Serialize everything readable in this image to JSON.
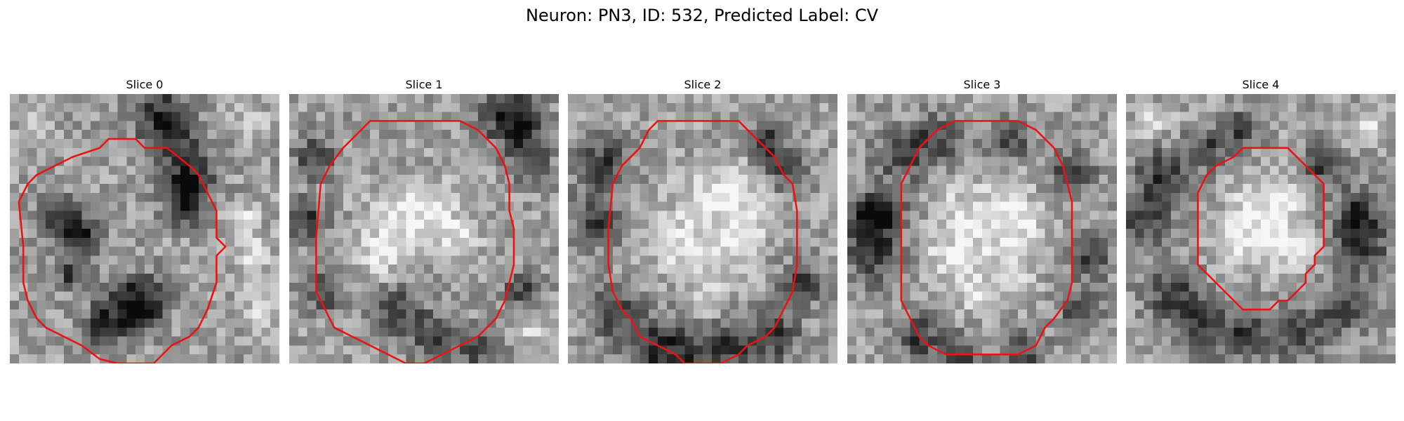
{
  "figure": {
    "title": "Neuron: PN3, ID: 532, Predicted Label: CV"
  },
  "panels": [
    {
      "title": "Slice 0",
      "contour": [
        [
          17.5,
          6
        ],
        [
          15,
          6
        ],
        [
          14,
          5
        ],
        [
          11,
          5
        ],
        [
          10,
          6
        ],
        [
          7,
          7
        ],
        [
          5,
          8
        ],
        [
          3,
          9
        ],
        [
          2,
          10
        ],
        [
          1,
          12
        ],
        [
          1.5,
          17
        ],
        [
          1.5,
          21
        ],
        [
          2,
          23
        ],
        [
          3,
          25
        ],
        [
          4,
          26
        ],
        [
          6,
          27
        ],
        [
          8,
          28
        ],
        [
          10,
          29.5
        ],
        [
          12,
          30
        ],
        [
          16,
          30
        ],
        [
          18,
          28
        ],
        [
          20,
          27
        ],
        [
          21,
          26
        ],
        [
          22,
          24
        ],
        [
          23,
          21
        ],
        [
          23,
          18
        ],
        [
          24,
          17
        ],
        [
          23,
          16
        ],
        [
          23,
          13
        ],
        [
          22,
          11
        ],
        [
          21,
          9
        ],
        [
          20,
          8
        ]
      ],
      "dark_blobs": [
        [
          17,
          2,
          2.2
        ],
        [
          18,
          5,
          2
        ],
        [
          20,
          9,
          1.8
        ],
        [
          20,
          11,
          1.5
        ],
        [
          19,
          13,
          1.4
        ],
        [
          6,
          14,
          1.8
        ],
        [
          8,
          16,
          1.6
        ],
        [
          13,
          24,
          2.2
        ],
        [
          15,
          23,
          1.8
        ],
        [
          10,
          26,
          1.5
        ],
        [
          7,
          20,
          1.3
        ]
      ],
      "light_blobs": [
        [
          27,
          18,
          1.6
        ],
        [
          28,
          24,
          1.5
        ],
        [
          26,
          14,
          1.2
        ],
        [
          3,
          3,
          1.3
        ],
        [
          27,
          3,
          1.2
        ]
      ]
    },
    {
      "title": "Slice 1",
      "contour": [
        [
          9,
          3
        ],
        [
          16,
          3
        ],
        [
          19,
          3
        ],
        [
          21,
          4
        ],
        [
          23,
          6
        ],
        [
          24,
          8
        ],
        [
          24.5,
          10
        ],
        [
          24.5,
          13
        ],
        [
          25,
          15
        ],
        [
          25,
          17
        ],
        [
          25,
          19
        ],
        [
          24.5,
          21
        ],
        [
          24,
          23
        ],
        [
          23,
          25
        ],
        [
          21,
          27
        ],
        [
          19,
          28
        ],
        [
          17,
          29
        ],
        [
          15,
          30
        ],
        [
          13,
          30
        ],
        [
          11,
          29
        ],
        [
          9,
          28
        ],
        [
          7,
          27
        ],
        [
          5,
          26
        ],
        [
          4,
          24
        ],
        [
          3,
          22
        ],
        [
          3,
          16
        ],
        [
          3.5,
          10
        ],
        [
          4.5,
          8
        ],
        [
          6,
          6
        ],
        [
          7,
          5
        ]
      ],
      "dark_blobs": [
        [
          24,
          2,
          2.3
        ],
        [
          26,
          4,
          1.8
        ],
        [
          27,
          8,
          1.5
        ],
        [
          3,
          7,
          1.6
        ],
        [
          2,
          14,
          1.6
        ],
        [
          4,
          22,
          1.5
        ],
        [
          12,
          24,
          1.8
        ],
        [
          16,
          27,
          1.8
        ],
        [
          21,
          28,
          1.6
        ],
        [
          26,
          22,
          1.4
        ]
      ],
      "light_blobs": [
        [
          12,
          14,
          2.6
        ],
        [
          16,
          13,
          2.2
        ],
        [
          10,
          18,
          1.8
        ],
        [
          19,
          16,
          1.6
        ],
        [
          27,
          26,
          1.2
        ]
      ]
    },
    {
      "title": "Slice 2",
      "contour": [
        [
          10,
          3
        ],
        [
          16,
          3
        ],
        [
          19,
          3
        ],
        [
          20,
          4
        ],
        [
          22,
          6
        ],
        [
          23,
          7
        ],
        [
          24,
          9
        ],
        [
          25,
          10
        ],
        [
          25.5,
          13
        ],
        [
          25.5,
          17
        ],
        [
          25.5,
          19
        ],
        [
          25,
          22
        ],
        [
          24,
          24
        ],
        [
          23,
          26
        ],
        [
          22,
          27
        ],
        [
          20,
          28
        ],
        [
          19,
          29
        ],
        [
          17,
          30
        ],
        [
          15,
          30
        ],
        [
          13,
          30
        ],
        [
          12,
          29
        ],
        [
          10,
          28
        ],
        [
          8,
          27
        ],
        [
          7,
          25
        ],
        [
          6,
          24
        ],
        [
          5,
          22
        ],
        [
          4.5,
          19
        ],
        [
          4.5,
          15
        ],
        [
          5,
          10
        ],
        [
          6,
          8
        ],
        [
          8,
          6
        ],
        [
          9,
          4
        ]
      ],
      "dark_blobs": [
        [
          4,
          8,
          2.1
        ],
        [
          3,
          14,
          1.9
        ],
        [
          5,
          24,
          2.0
        ],
        [
          9,
          28,
          2.2
        ],
        [
          13,
          29,
          2.1
        ],
        [
          18,
          28,
          2.0
        ],
        [
          23,
          27,
          1.9
        ],
        [
          26,
          21,
          1.6
        ],
        [
          24,
          8,
          1.6
        ],
        [
          22,
          5,
          1.4
        ]
      ],
      "light_blobs": [
        [
          15,
          12,
          2.6
        ],
        [
          19,
          11,
          2.0
        ],
        [
          12,
          17,
          2.2
        ],
        [
          17,
          18,
          2.2
        ],
        [
          20,
          15,
          1.8
        ],
        [
          16,
          23,
          1.3
        ]
      ]
    },
    {
      "title": "Slice 3",
      "contour": [
        [
          12,
          3
        ],
        [
          19,
          3
        ],
        [
          21,
          4
        ],
        [
          23,
          6
        ],
        [
          24,
          8
        ],
        [
          24.5,
          10
        ],
        [
          25,
          12
        ],
        [
          25,
          18
        ],
        [
          25,
          21
        ],
        [
          24.5,
          23
        ],
        [
          23,
          25
        ],
        [
          22,
          26
        ],
        [
          21,
          28
        ],
        [
          19,
          29
        ],
        [
          17,
          29
        ],
        [
          15,
          29
        ],
        [
          13,
          29
        ],
        [
          11,
          29
        ],
        [
          9,
          28
        ],
        [
          8,
          27
        ],
        [
          7,
          25
        ],
        [
          6,
          23
        ],
        [
          6,
          21
        ],
        [
          6,
          17
        ],
        [
          6,
          13
        ],
        [
          6,
          10
        ],
        [
          7,
          8
        ],
        [
          8,
          6
        ],
        [
          10,
          4
        ]
      ],
      "dark_blobs": [
        [
          4,
          13,
          1.8
        ],
        [
          3,
          18,
          2.2
        ],
        [
          2,
          14,
          1.8
        ],
        [
          6,
          7,
          1.9
        ],
        [
          10,
          5,
          1.7
        ],
        [
          18,
          5,
          1.7
        ],
        [
          25,
          9,
          1.7
        ],
        [
          27,
          18,
          1.7
        ],
        [
          26,
          24,
          1.6
        ],
        [
          8,
          27,
          1.8
        ],
        [
          13,
          29,
          1.5
        ],
        [
          20,
          29,
          1.5
        ]
      ],
      "light_blobs": [
        [
          13,
          13,
          2.2
        ],
        [
          18,
          11,
          2.0
        ],
        [
          16,
          17,
          2.4
        ],
        [
          20,
          15,
          1.8
        ],
        [
          11,
          18,
          1.8
        ],
        [
          19,
          21,
          1.6
        ],
        [
          14,
          22,
          1.6
        ]
      ]
    },
    {
      "title": "Slice 4",
      "contour": [
        [
          15,
          6
        ],
        [
          18,
          6
        ],
        [
          19,
          7
        ],
        [
          20,
          8
        ],
        [
          21,
          9
        ],
        [
          22,
          10
        ],
        [
          22,
          12
        ],
        [
          22,
          14
        ],
        [
          22,
          17
        ],
        [
          21,
          18
        ],
        [
          21,
          19
        ],
        [
          20,
          20
        ],
        [
          20,
          21
        ],
        [
          19,
          22
        ],
        [
          18,
          23
        ],
        [
          17,
          23
        ],
        [
          16,
          24
        ],
        [
          14,
          24
        ],
        [
          13,
          24
        ],
        [
          12,
          23
        ],
        [
          11,
          22
        ],
        [
          10,
          21
        ],
        [
          9,
          20
        ],
        [
          8,
          19
        ],
        [
          8,
          18
        ],
        [
          8,
          15
        ],
        [
          8,
          11
        ],
        [
          9,
          9
        ],
        [
          10,
          8
        ],
        [
          12,
          7
        ],
        [
          13,
          6
        ]
      ],
      "dark_blobs": [
        [
          4,
          9,
          2.1
        ],
        [
          2,
          14,
          2.0
        ],
        [
          5,
          22,
          2.0
        ],
        [
          8,
          26,
          2.0
        ],
        [
          13,
          27,
          2.0
        ],
        [
          19,
          27,
          2.0
        ],
        [
          24,
          24,
          1.8
        ],
        [
          26,
          17,
          2.3
        ],
        [
          26,
          13,
          1.8
        ],
        [
          22,
          8,
          1.6
        ],
        [
          9,
          6,
          1.6
        ],
        [
          13,
          4,
          1.4
        ]
      ],
      "light_blobs": [
        [
          14,
          12,
          2.0
        ],
        [
          18,
          12,
          1.8
        ],
        [
          16,
          16,
          2.2
        ],
        [
          12,
          16,
          1.8
        ],
        [
          19,
          18,
          1.6
        ],
        [
          3,
          3,
          1.4
        ],
        [
          27,
          4,
          1.2
        ]
      ]
    }
  ]
}
